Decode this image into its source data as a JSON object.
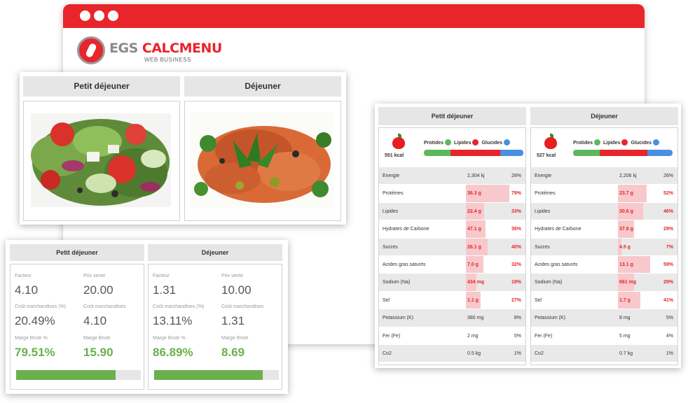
{
  "brand": {
    "name_prefix": "EGS ",
    "name_main": "CALCMENU",
    "tagline": "WEB BUSINESS",
    "accent_color": "#e8252b"
  },
  "meals": {
    "breakfast": "Petit déjeuner",
    "lunch": "Déjeuner"
  },
  "food_images": {
    "breakfast": "salad-photo",
    "lunch": "chicken-dish-photo"
  },
  "finance": {
    "labels": {
      "factor": "Facteur",
      "sale_price": "Prix vente",
      "goods_cost_pct": "Coût marchandises (%)",
      "goods_cost": "Coût marchandises",
      "gross_margin_pct": "Marge Brute %",
      "gross_margin": "Marge Brute"
    },
    "breakfast": {
      "factor": "4.10",
      "sale_price": "20.00",
      "goods_cost_pct": "20.49%",
      "goods_cost": "4.10",
      "gross_margin_pct": "79.51%",
      "gross_margin": "15.90",
      "margin_fraction": 0.7951
    },
    "lunch": {
      "factor": "1.31",
      "sale_price": "10.00",
      "goods_cost_pct": "13.11%",
      "goods_cost": "1.31",
      "gross_margin_pct": "86.89%",
      "gross_margin": "8.69",
      "margin_fraction": 0.8689
    }
  },
  "nutrition": {
    "legend": {
      "protides": "Protides",
      "lipides": "Lipides",
      "glucides": "Glucides"
    },
    "macro_colors": {
      "protides": "#5cb85c",
      "lipides": "#e8252b",
      "glucides": "#4a90e2"
    },
    "breakfast": {
      "kcal": "551 kcal",
      "macro_split": [
        0.27,
        0.5,
        0.23
      ],
      "rows": [
        {
          "name": "Energie",
          "value": "2,304 kj",
          "pct": "28%",
          "level": 0.28,
          "highlight": false
        },
        {
          "name": "Protéines",
          "value": "36.3 g",
          "pct": "79%",
          "level": 0.79,
          "highlight": true
        },
        {
          "name": "Lipides",
          "value": "22.4 g",
          "pct": "33%",
          "level": 0.33,
          "highlight": true
        },
        {
          "name": "Hydrates de Carbone",
          "value": "47.1 g",
          "pct": "36%",
          "level": 0.36,
          "highlight": true
        },
        {
          "name": "Sucres",
          "value": "26.1 g",
          "pct": "40%",
          "level": 0.4,
          "highlight": true
        },
        {
          "name": "Acides gras saturés",
          "value": "7.0 g",
          "pct": "32%",
          "level": 0.32,
          "highlight": true
        },
        {
          "name": "Sodium (Na)",
          "value": "434 mg",
          "pct": "19%",
          "level": 0.19,
          "highlight": true
        },
        {
          "name": "Sel",
          "value": "1.1 g",
          "pct": "27%",
          "level": 0.27,
          "highlight": true
        },
        {
          "name": "Potassium (K)",
          "value": "380 mg",
          "pct": "8%",
          "level": 0.08,
          "highlight": false
        },
        {
          "name": "Fer (Fe)",
          "value": "2 mg",
          "pct": "5%",
          "level": 0.05,
          "highlight": false
        },
        {
          "name": "Co2",
          "value": "0.5 kg",
          "pct": "1%",
          "level": 0.01,
          "highlight": false
        }
      ]
    },
    "lunch": {
      "kcal": "527 kcal",
      "macro_split": [
        0.27,
        0.48,
        0.25
      ],
      "rows": [
        {
          "name": "Energie",
          "value": "2,206 kj",
          "pct": "26%",
          "level": 0.26,
          "highlight": false
        },
        {
          "name": "Protéines",
          "value": "23.7 g",
          "pct": "52%",
          "level": 0.52,
          "highlight": true
        },
        {
          "name": "Lipides",
          "value": "30.6 g",
          "pct": "46%",
          "level": 0.46,
          "highlight": true
        },
        {
          "name": "Hydrates de Carbone",
          "value": "37.8 g",
          "pct": "29%",
          "level": 0.29,
          "highlight": true
        },
        {
          "name": "Sucres",
          "value": "4.5 g",
          "pct": "7%",
          "level": 0.07,
          "highlight": true
        },
        {
          "name": "Acides gras saturés",
          "value": "13.1 g",
          "pct": "59%",
          "level": 0.59,
          "highlight": true
        },
        {
          "name": "Sodium (Na)",
          "value": "661 mg",
          "pct": "29%",
          "level": 0.29,
          "highlight": true
        },
        {
          "name": "Sel",
          "value": "1.7 g",
          "pct": "41%",
          "level": 0.41,
          "highlight": true
        },
        {
          "name": "Potassium (K)",
          "value": "8 mg",
          "pct": "5%",
          "level": 0.05,
          "highlight": false
        },
        {
          "name": "Fer (Fe)",
          "value": "5 mg",
          "pct": "4%",
          "level": 0.04,
          "highlight": false
        },
        {
          "name": "Co2",
          "value": "0.7 kg",
          "pct": "1%",
          "level": 0.01,
          "highlight": false
        }
      ]
    }
  }
}
